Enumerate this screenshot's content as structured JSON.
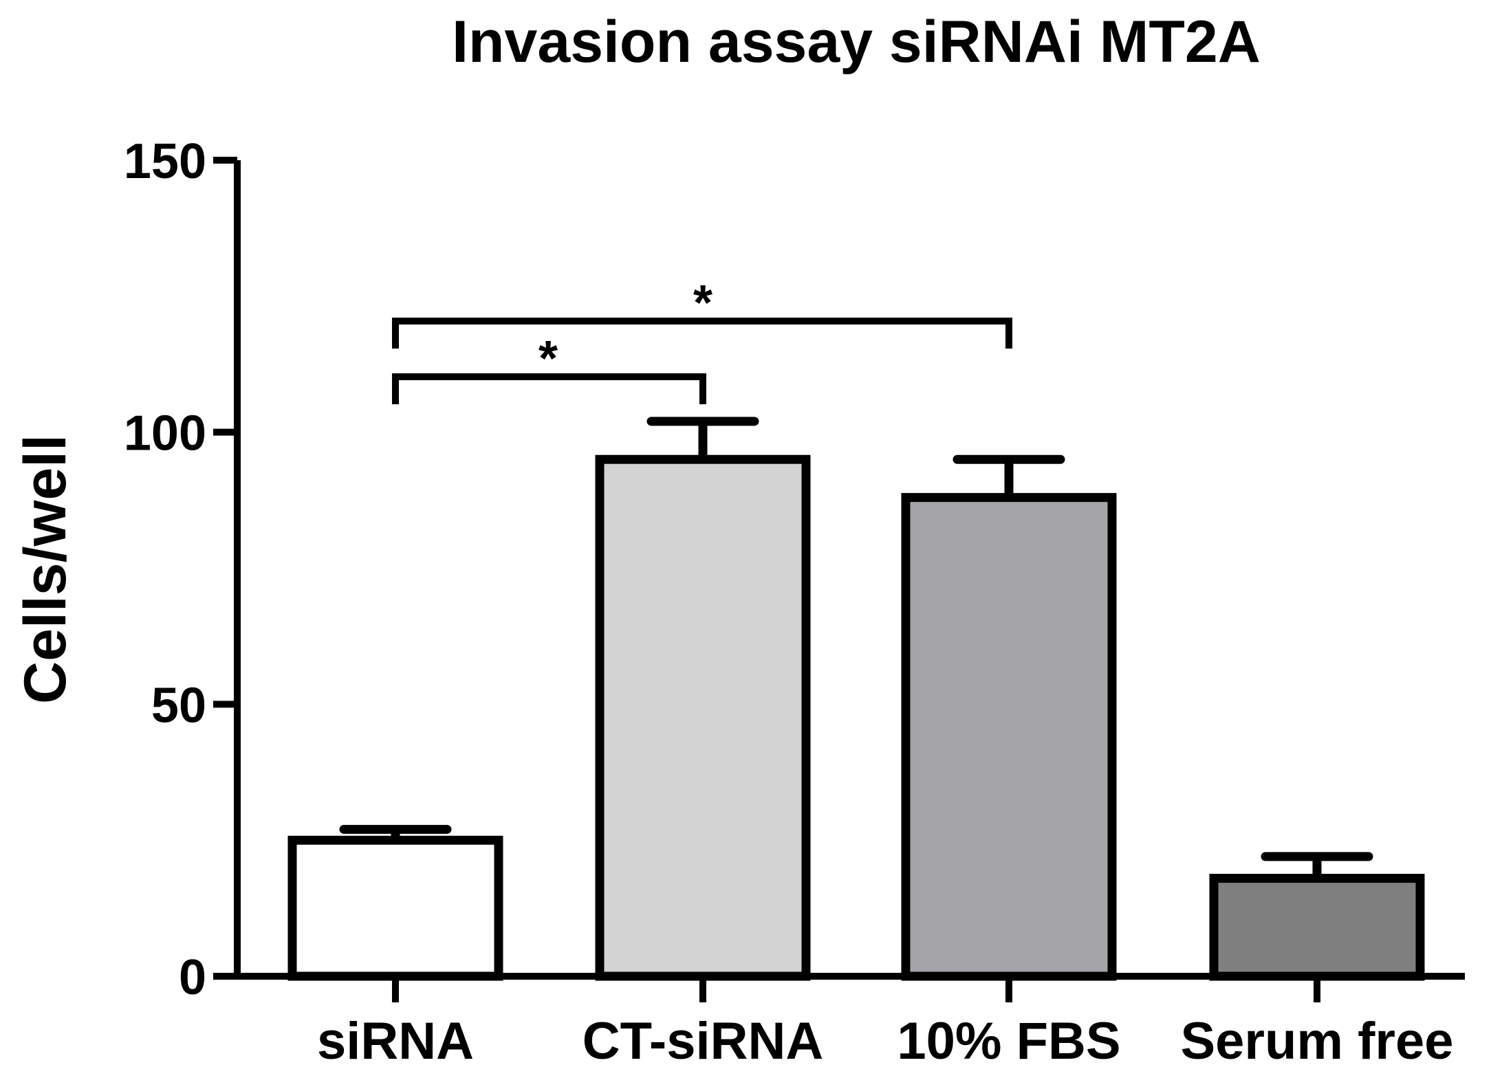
{
  "chart_data": {
    "type": "bar",
    "title": "Invasion assay siRNAi MT2A",
    "xlabel": "",
    "ylabel": "Cells/well",
    "ylim": [
      0,
      150
    ],
    "yticks": [
      0,
      50,
      100,
      150
    ],
    "yticklabels": [
      "0",
      "50",
      "100",
      "150"
    ],
    "grid": false,
    "legend": "none",
    "categories": [
      "siRNA",
      "CT-siRNA",
      "10% FBS",
      "Serum free"
    ],
    "values": [
      25,
      95,
      88,
      18
    ],
    "errors": [
      2,
      7,
      7,
      4
    ],
    "colors": [
      "#ffffff",
      "#d3d3d4",
      "#a5a4a8",
      "#7f7f7f"
    ],
    "significance": [
      {
        "from": 0,
        "to": 1,
        "label": "*"
      },
      {
        "from": 0,
        "to": 2,
        "label": "*"
      }
    ]
  }
}
